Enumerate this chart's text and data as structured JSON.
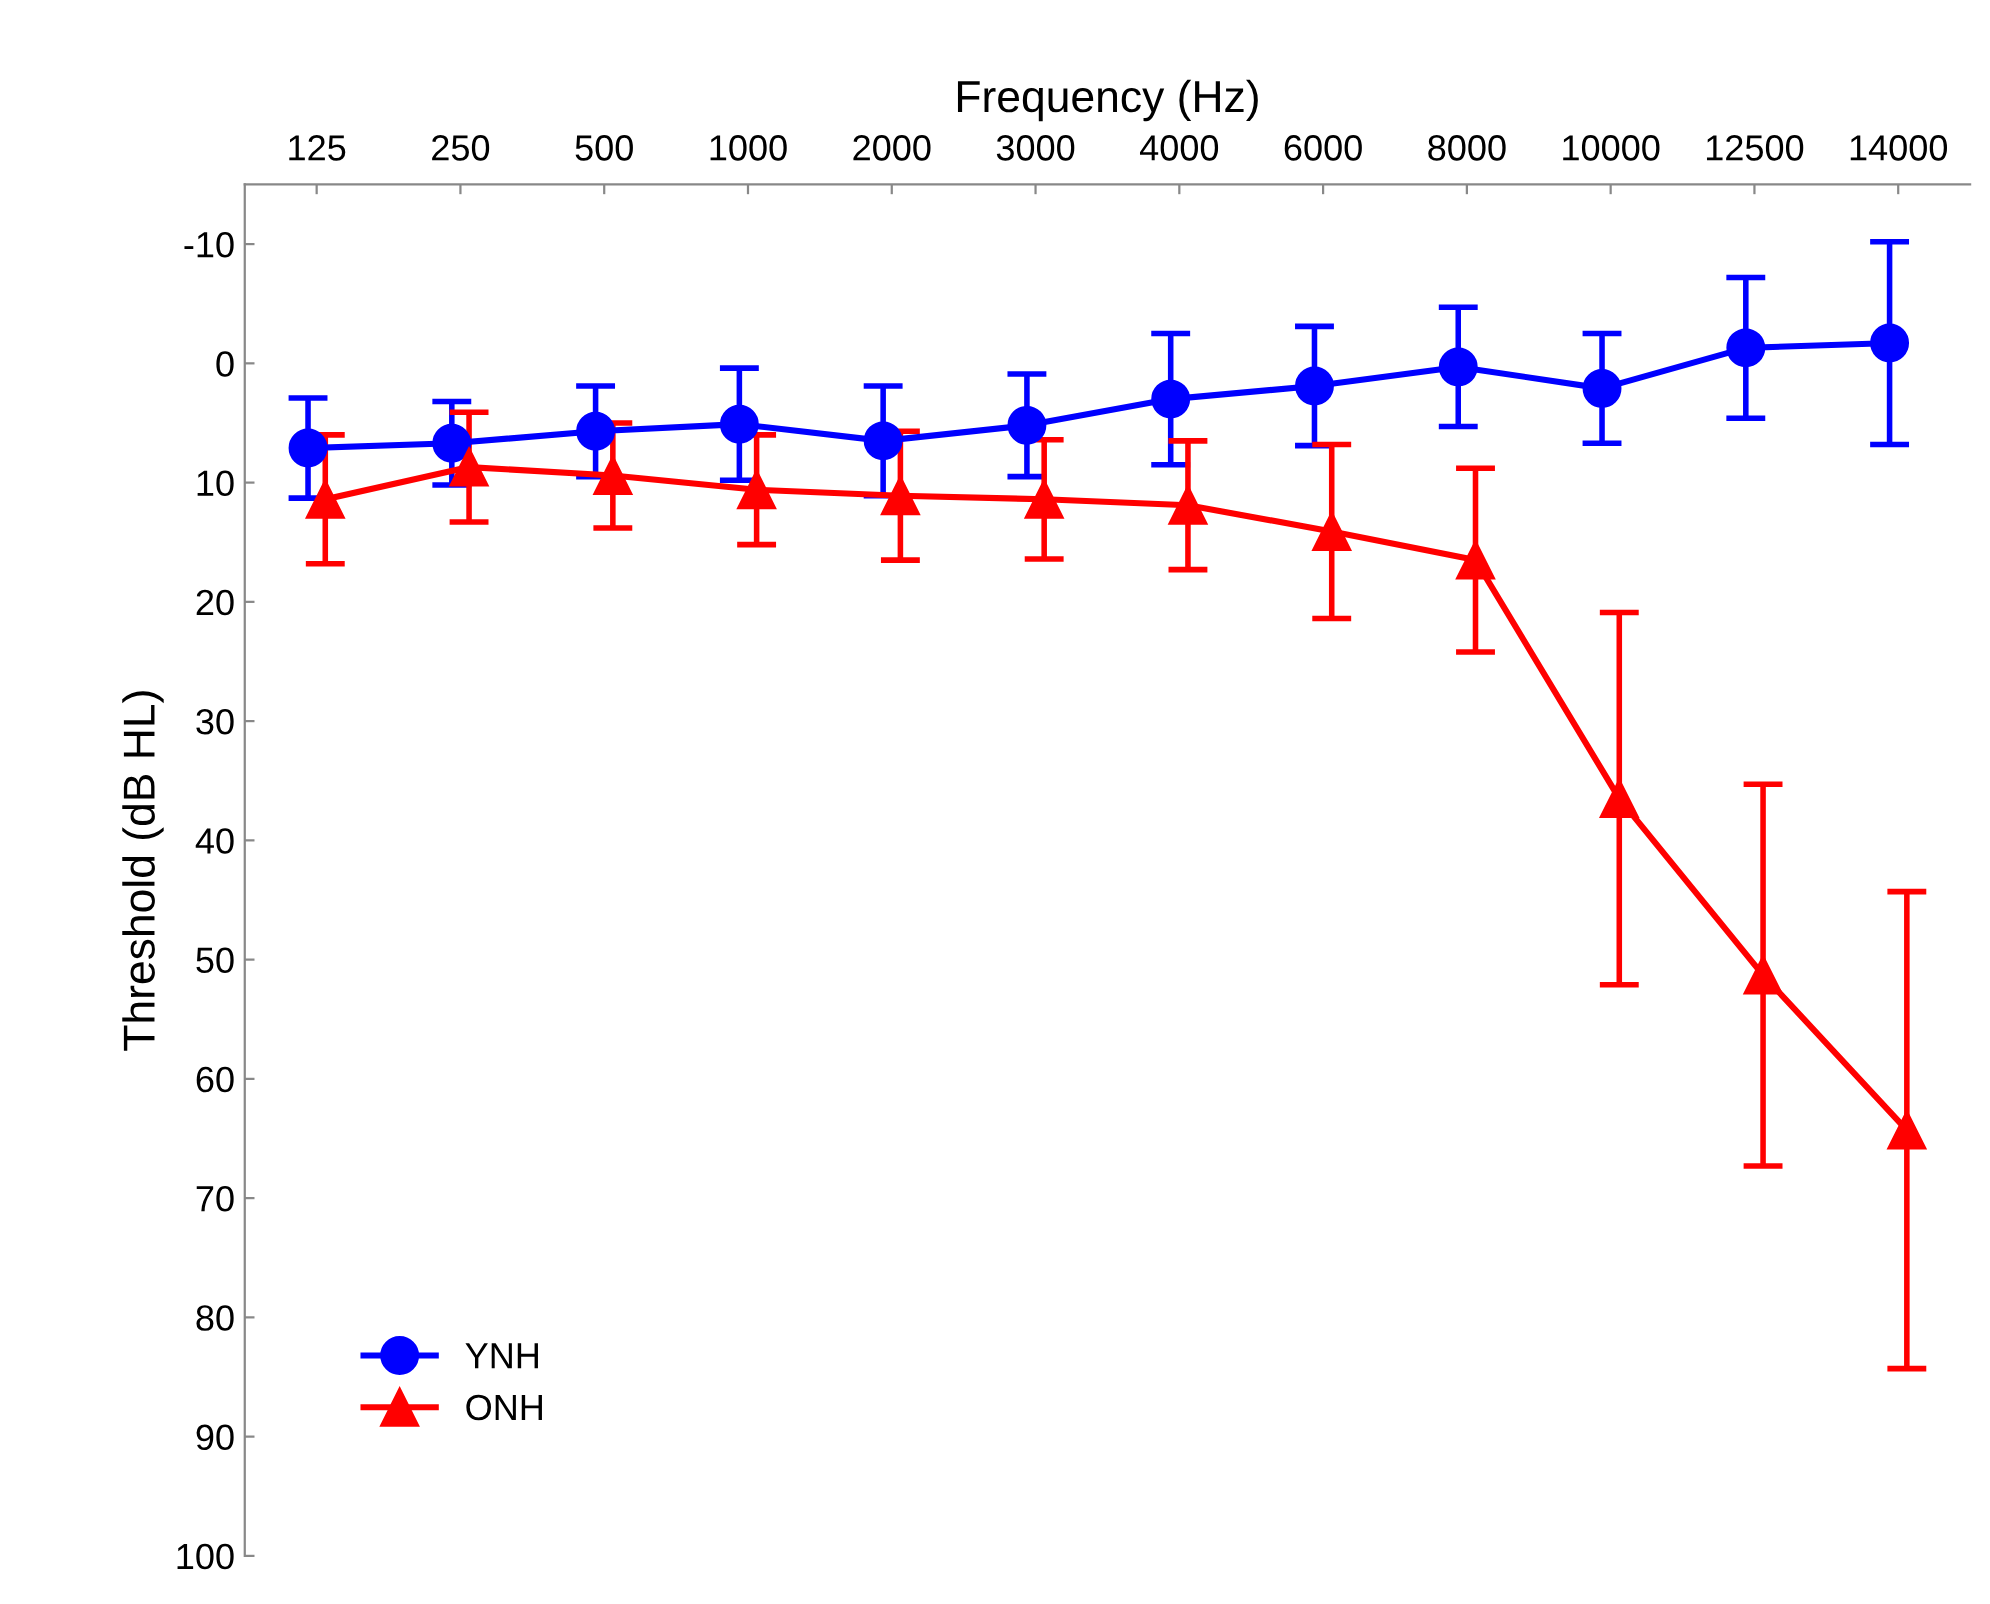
{
  "chart_data": {
    "type": "line",
    "xlabel": "Frequency (Hz)",
    "ylabel": "Threshold (dB HL)",
    "categories": [
      "125",
      "250",
      "500",
      "1000",
      "2000",
      "3000",
      "4000",
      "6000",
      "8000",
      "10000",
      "12500",
      "14000"
    ],
    "series": [
      {
        "name": "YNH",
        "color": "#0000ff",
        "marker": "circle",
        "values": [
          7.1,
          6.7,
          5.7,
          5.1,
          6.5,
          5.2,
          3.0,
          1.9,
          0.3,
          2.1,
          -1.3,
          -1.7
        ],
        "errors": [
          4.2,
          3.5,
          3.8,
          4.7,
          4.6,
          4.3,
          5.5,
          5.0,
          5.0,
          4.6,
          5.9,
          8.5
        ]
      },
      {
        "name": "ONH",
        "color": "#ff0000",
        "marker": "triangle",
        "values": [
          11.4,
          8.7,
          9.4,
          10.6,
          11.1,
          11.4,
          11.9,
          14.1,
          16.5,
          36.5,
          51.3,
          64.3
        ],
        "errors": [
          5.4,
          4.6,
          4.4,
          4.6,
          5.4,
          5.0,
          5.4,
          7.3,
          7.7,
          15.6,
          16.0,
          20.0
        ]
      }
    ],
    "ylim": [
      100,
      -15
    ],
    "yticks": [
      -10,
      0,
      10,
      20,
      30,
      40,
      50,
      60,
      70,
      80,
      90,
      100
    ],
    "legend": "bottom left",
    "grid": false
  }
}
